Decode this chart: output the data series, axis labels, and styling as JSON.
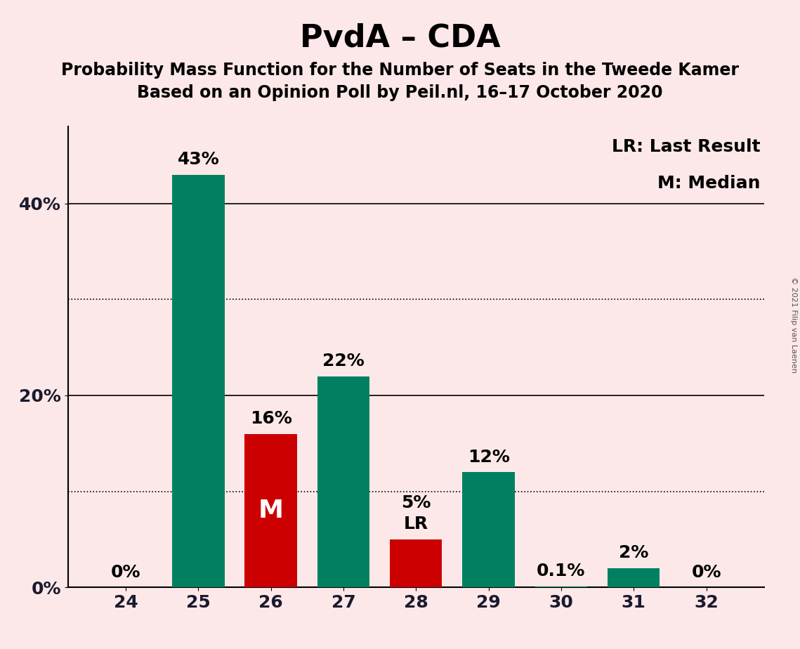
{
  "title": "PvdA – CDA",
  "subtitle1": "Probability Mass Function for the Number of Seats in the Tweede Kamer",
  "subtitle2": "Based on an Opinion Poll by Peil.nl, 16–17 October 2020",
  "copyright": "© 2021 Filip van Laenen",
  "categories": [
    24,
    25,
    26,
    27,
    28,
    29,
    30,
    31,
    32
  ],
  "values": [
    0.0,
    43.0,
    16.0,
    22.0,
    5.0,
    12.0,
    0.1,
    2.0,
    0.0
  ],
  "bar_colors": [
    "#008060",
    "#008060",
    "#cc0000",
    "#008060",
    "#cc0000",
    "#008060",
    "#008060",
    "#008060",
    "#008060"
  ],
  "bar_labels": [
    "0%",
    "43%",
    "16%",
    "22%",
    "5%",
    "12%",
    "0.1%",
    "2%",
    "0%"
  ],
  "m_label_idx": 2,
  "lr_label_idx": 4,
  "legend_text1": "LR: Last Result",
  "legend_text2": "M: Median",
  "background_color": "#fce8e8",
  "ylim": [
    0,
    48
  ],
  "yticks_solid": [
    20,
    40
  ],
  "yticks_dotted": [
    10,
    30
  ],
  "ytick_labels_positions": [
    0,
    20,
    40
  ],
  "ytick_labels": [
    "0%",
    "20%",
    "40%"
  ],
  "title_fontsize": 32,
  "subtitle_fontsize": 17,
  "bar_label_fontsize": 18,
  "axis_label_fontsize": 18,
  "legend_fontsize": 18,
  "m_fontsize": 26,
  "lr_fontsize": 18
}
